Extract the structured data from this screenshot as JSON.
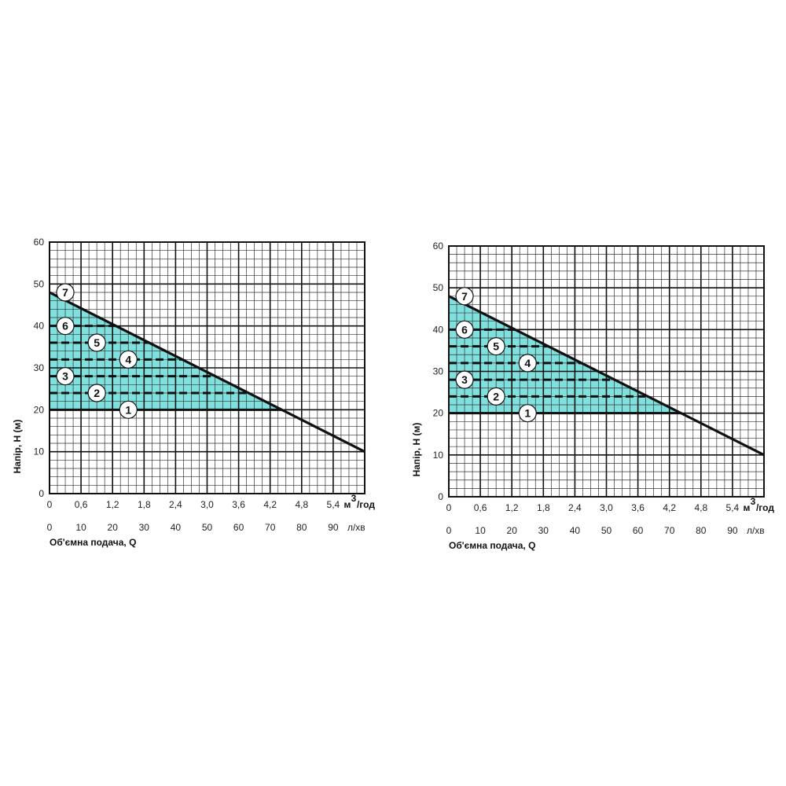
{
  "chart_data": [
    {
      "type": "line",
      "ylabel": "Напір, Н (м)",
      "xlabel": "Об'ємна подача, Q",
      "x_unit_primary": "м³/год",
      "x_unit_primary_base": "м",
      "x_unit_primary_sup": "3",
      "x_unit_primary_rest": "/год",
      "x_unit_secondary": "л/хв",
      "ylim": [
        0,
        60
      ],
      "xlim_lpm": [
        0,
        100
      ],
      "xlim_m3h": [
        0,
        6.0
      ],
      "yticks": [
        "0",
        "10",
        "20",
        "30",
        "40",
        "50",
        "60"
      ],
      "xticks_m3h": [
        "0",
        "0,6",
        "1,2",
        "1,8",
        "2,4",
        "3,0",
        "3,6",
        "4,2",
        "4,8",
        "5,4"
      ],
      "xticks_lpm": [
        "0",
        "10",
        "20",
        "30",
        "40",
        "50",
        "60",
        "70",
        "80",
        "90"
      ],
      "grid": true,
      "pump_curve": {
        "name": "",
        "x_lpm": [
          0,
          100
        ],
        "y": [
          48,
          10
        ]
      },
      "shaded_region": {
        "color": "#7fe0de",
        "y_min": 20,
        "y_max": 48
      },
      "pressure_levels": [
        {
          "label": "1",
          "y": 20,
          "style": "solid"
        },
        {
          "label": "2",
          "y": 24,
          "style": "dashed"
        },
        {
          "label": "3",
          "y": 28,
          "style": "dashed"
        },
        {
          "label": "4",
          "y": 32,
          "style": "dashed"
        },
        {
          "label": "5",
          "y": 36,
          "style": "dashed"
        },
        {
          "label": "6",
          "y": 40,
          "style": "dashed"
        },
        {
          "label": "7",
          "y": 48,
          "style": "curve"
        }
      ]
    },
    {
      "type": "line",
      "ylabel": "Напір, Н (м)",
      "xlabel": "Об'ємна подача, Q",
      "x_unit_primary": "м³/год",
      "x_unit_primary_base": "м",
      "x_unit_primary_sup": "3",
      "x_unit_primary_rest": "/год",
      "x_unit_secondary": "л/хв",
      "ylim": [
        0,
        60
      ],
      "xlim_lpm": [
        0,
        100
      ],
      "xlim_m3h": [
        0,
        6.0
      ],
      "yticks": [
        "0",
        "10",
        "20",
        "30",
        "40",
        "50",
        "60"
      ],
      "xticks_m3h": [
        "0",
        "0,6",
        "1,2",
        "1,8",
        "2,4",
        "3,0",
        "3,6",
        "4,2",
        "4,8",
        "5,4"
      ],
      "xticks_lpm": [
        "0",
        "10",
        "20",
        "30",
        "40",
        "50",
        "60",
        "70",
        "80",
        "90"
      ],
      "grid": true,
      "pump_curve": {
        "name": "",
        "x_lpm": [
          0,
          100
        ],
        "y": [
          48,
          10
        ]
      },
      "shaded_region": {
        "color": "#7fe0de",
        "y_min": 20,
        "y_max": 48
      },
      "pressure_levels": [
        {
          "label": "1",
          "y": 20,
          "style": "solid"
        },
        {
          "label": "2",
          "y": 24,
          "style": "dashed"
        },
        {
          "label": "3",
          "y": 28,
          "style": "dashed"
        },
        {
          "label": "4",
          "y": 32,
          "style": "dashed"
        },
        {
          "label": "5",
          "y": 36,
          "style": "dashed"
        },
        {
          "label": "6",
          "y": 40,
          "style": "dashed"
        },
        {
          "label": "7",
          "y": 48,
          "style": "curve"
        }
      ]
    }
  ]
}
